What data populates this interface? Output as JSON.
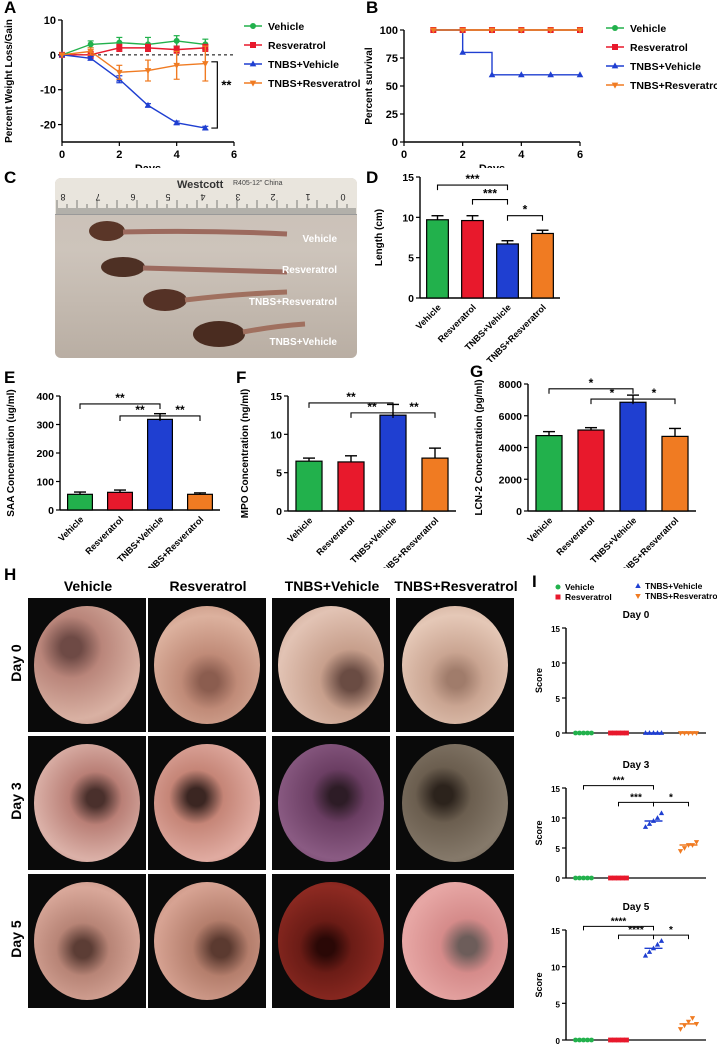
{
  "panel_letters": [
    "A",
    "B",
    "C",
    "D",
    "E",
    "F",
    "G",
    "H",
    "I"
  ],
  "legend": {
    "groups": [
      "Vehicle",
      "Resveratrol",
      "TNBS+Vehicle",
      "TNBS+Resveratrol"
    ],
    "colors": [
      "#22b14c",
      "#e8192c",
      "#1f3fd1",
      "#f07b22"
    ]
  },
  "chart_data": [
    {
      "id": "A",
      "type": "line",
      "xlabel": "Days",
      "ylabel": "Percent Weight Loss/Gain",
      "xlim": [
        0,
        6
      ],
      "ylim": [
        -25,
        10
      ],
      "xticks": [
        0,
        2,
        4,
        6
      ],
      "yticks": [
        10,
        0,
        -10,
        -20
      ],
      "reference_line": 0,
      "series": [
        {
          "name": "Vehicle",
          "x": [
            0,
            1,
            2,
            3,
            4,
            5
          ],
          "y": [
            0,
            3,
            3.5,
            3,
            4,
            3
          ],
          "err": [
            0,
            1,
            1.5,
            2,
            1.5,
            1.5
          ]
        },
        {
          "name": "Resveratrol",
          "x": [
            0,
            1,
            2,
            3,
            4,
            5
          ],
          "y": [
            0,
            0,
            2,
            2,
            1.5,
            2
          ],
          "err": [
            0,
            1,
            1,
            1,
            1,
            1
          ]
        },
        {
          "name": "TNBS+Vehicle",
          "x": [
            0,
            1,
            2,
            3,
            4,
            5
          ],
          "y": [
            0,
            -1,
            -7,
            -14.5,
            -19.5,
            -21
          ],
          "err": [
            0,
            0.5,
            1,
            0.5,
            0.5,
            0.5
          ]
        },
        {
          "name": "TNBS+Resveratrol",
          "x": [
            0,
            1,
            2,
            3,
            4,
            5
          ],
          "y": [
            0,
            1,
            -5,
            -4.5,
            -3,
            -2.5
          ],
          "err": [
            0,
            1,
            2,
            3,
            4,
            5
          ]
        }
      ],
      "annotation": "**"
    },
    {
      "id": "B",
      "type": "line",
      "xlabel": "Days",
      "ylabel": "Percent survival",
      "xlim": [
        0,
        6
      ],
      "ylim": [
        0,
        100
      ],
      "xticks": [
        0,
        2,
        4,
        6
      ],
      "yticks": [
        0,
        25,
        50,
        75,
        100
      ],
      "series": [
        {
          "name": "Vehicle",
          "x": [
            1,
            2,
            3,
            4,
            5,
            6
          ],
          "y": [
            100,
            100,
            100,
            100,
            100,
            100
          ]
        },
        {
          "name": "Resveratrol",
          "x": [
            1,
            2,
            3,
            4,
            5,
            6
          ],
          "y": [
            100,
            100,
            100,
            100,
            100,
            100
          ]
        },
        {
          "name": "TNBS+Vehicle",
          "x": [
            2,
            3,
            4,
            5,
            6
          ],
          "y": [
            80,
            60,
            60,
            60,
            60
          ]
        },
        {
          "name": "TNBS+Resveratrol",
          "x": [
            1,
            2,
            3,
            4,
            5,
            6
          ],
          "y": [
            100,
            100,
            100,
            100,
            100,
            100
          ]
        }
      ]
    },
    {
      "id": "D",
      "type": "bar",
      "ylabel": "Length (cm)",
      "ylim": [
        0,
        15
      ],
      "yticks": [
        0,
        5,
        10,
        15
      ],
      "categories": [
        "Vehicle",
        "Resveratrol",
        "TNBS+Vehicle",
        "TNBS+Resveratrol"
      ],
      "values": [
        9.7,
        9.6,
        6.7,
        8.0
      ],
      "err": [
        0.5,
        0.6,
        0.4,
        0.4
      ],
      "significance": [
        {
          "from": 0,
          "to": 2,
          "label": "***"
        },
        {
          "from": 1,
          "to": 2,
          "label": "***"
        },
        {
          "from": 2,
          "to": 3,
          "label": "*"
        }
      ]
    },
    {
      "id": "E",
      "type": "bar",
      "ylabel": "SAA Concentration (ug/ml)",
      "ylim": [
        0,
        400
      ],
      "yticks": [
        0,
        100,
        200,
        300,
        400
      ],
      "categories": [
        "Vehicle",
        "Resveratrol",
        "TNBS+Vehicle",
        "TNBS+Resveratrol"
      ],
      "values": [
        55,
        62,
        318,
        55
      ],
      "err": [
        8,
        8,
        20,
        5
      ],
      "significance": [
        {
          "from": 0,
          "to": 2,
          "label": "**"
        },
        {
          "from": 1,
          "to": 2,
          "label": "**"
        },
        {
          "from": 2,
          "to": 3,
          "label": "**"
        }
      ]
    },
    {
      "id": "F",
      "type": "bar",
      "ylabel": "MPO Concentration (ng/ml)",
      "ylim": [
        0,
        15
      ],
      "yticks": [
        0,
        5,
        10,
        15
      ],
      "categories": [
        "Vehicle",
        "Resveratrol",
        "TNBS+Vehicle",
        "TNBS+Resveratrol"
      ],
      "values": [
        6.5,
        6.4,
        12.5,
        6.9
      ],
      "err": [
        0.4,
        0.8,
        1.4,
        1.3
      ],
      "significance": [
        {
          "from": 0,
          "to": 2,
          "label": "**"
        },
        {
          "from": 1,
          "to": 2,
          "label": "**"
        },
        {
          "from": 2,
          "to": 3,
          "label": "**"
        }
      ]
    },
    {
      "id": "G",
      "type": "bar",
      "ylabel": "LCN-2 Concentration (pg/ml)",
      "ylim": [
        0,
        8000
      ],
      "yticks": [
        0,
        2000,
        4000,
        6000,
        8000
      ],
      "categories": [
        "Vehicle",
        "Resveratrol",
        "TNBS+Vehicle",
        "TNBS+Resveratrol"
      ],
      "values": [
        4750,
        5100,
        6850,
        4700
      ],
      "err": [
        250,
        150,
        450,
        500
      ],
      "significance": [
        {
          "from": 0,
          "to": 2,
          "label": "*"
        },
        {
          "from": 1,
          "to": 2,
          "label": "*"
        },
        {
          "from": 2,
          "to": 3,
          "label": "*"
        }
      ]
    },
    {
      "id": "I-day0",
      "type": "scatter",
      "title": "Day 0",
      "ylabel": "Score",
      "ylim": [
        0,
        15
      ],
      "yticks": [
        0,
        5,
        10,
        15
      ],
      "groups": [
        {
          "name": "Vehicle",
          "points": [
            0,
            0,
            0,
            0,
            0
          ],
          "mean": 0
        },
        {
          "name": "Resveratrol",
          "points": [
            0,
            0,
            0,
            0,
            0
          ],
          "mean": 0
        },
        {
          "name": "TNBS+Vehicle",
          "points": [
            0,
            0,
            0,
            0,
            0
          ],
          "mean": 0
        },
        {
          "name": "TNBS+Resveratrol",
          "points": [
            0,
            0,
            0,
            0,
            0
          ],
          "mean": 0
        }
      ],
      "significance": []
    },
    {
      "id": "I-day3",
      "type": "scatter",
      "title": "Day 3",
      "ylabel": "Score",
      "ylim": [
        0,
        15
      ],
      "yticks": [
        0,
        5,
        10,
        15
      ],
      "groups": [
        {
          "name": "Vehicle",
          "points": [
            0,
            0,
            0,
            0,
            0
          ],
          "mean": 0
        },
        {
          "name": "Resveratrol",
          "points": [
            0,
            0,
            0,
            0,
            0
          ],
          "mean": 0
        },
        {
          "name": "TNBS+Vehicle",
          "points": [
            8.5,
            9,
            9.5,
            10,
            10.8
          ],
          "mean": 9.5
        },
        {
          "name": "TNBS+Resveratrol",
          "points": [
            4.5,
            5,
            5.5,
            5.5,
            6
          ],
          "mean": 5.5
        }
      ],
      "significance": [
        {
          "from": 0,
          "to": 2,
          "label": "***"
        },
        {
          "from": 1,
          "to": 2,
          "label": "***"
        },
        {
          "from": 2,
          "to": 3,
          "label": "*"
        }
      ]
    },
    {
      "id": "I-day5",
      "type": "scatter",
      "title": "Day 5",
      "ylabel": "Score",
      "ylim": [
        0,
        15
      ],
      "yticks": [
        0,
        5,
        10,
        15
      ],
      "groups": [
        {
          "name": "Vehicle",
          "points": [
            0,
            0,
            0,
            0,
            0
          ],
          "mean": 0
        },
        {
          "name": "Resveratrol",
          "points": [
            0,
            0,
            0,
            0,
            0
          ],
          "mean": 0
        },
        {
          "name": "TNBS+Vehicle",
          "points": [
            11.5,
            12,
            12.5,
            13,
            13.5
          ],
          "mean": 12.5
        },
        {
          "name": "TNBS+Resveratrol",
          "points": [
            1.5,
            2,
            2.5,
            3,
            2.2
          ],
          "mean": 2.2
        }
      ],
      "significance": [
        {
          "from": 0,
          "to": 2,
          "label": "****"
        },
        {
          "from": 1,
          "to": 2,
          "label": "****"
        },
        {
          "from": 2,
          "to": 3,
          "label": "*"
        }
      ]
    }
  ],
  "panel_c": {
    "ruler_brand": "Westcott",
    "ruler_marking": "R405-12\" China",
    "sample_labels": [
      "Vehicle",
      "Resveratrol",
      "TNBS+Resveratrol",
      "TNBS+Vehicle"
    ]
  },
  "panel_h": {
    "columns": [
      "Vehicle",
      "Resveratrol",
      "TNBS+Vehicle",
      "TNBS+Resveratrol"
    ],
    "rows": [
      "Day 0",
      "Day 3",
      "Day 5"
    ]
  }
}
